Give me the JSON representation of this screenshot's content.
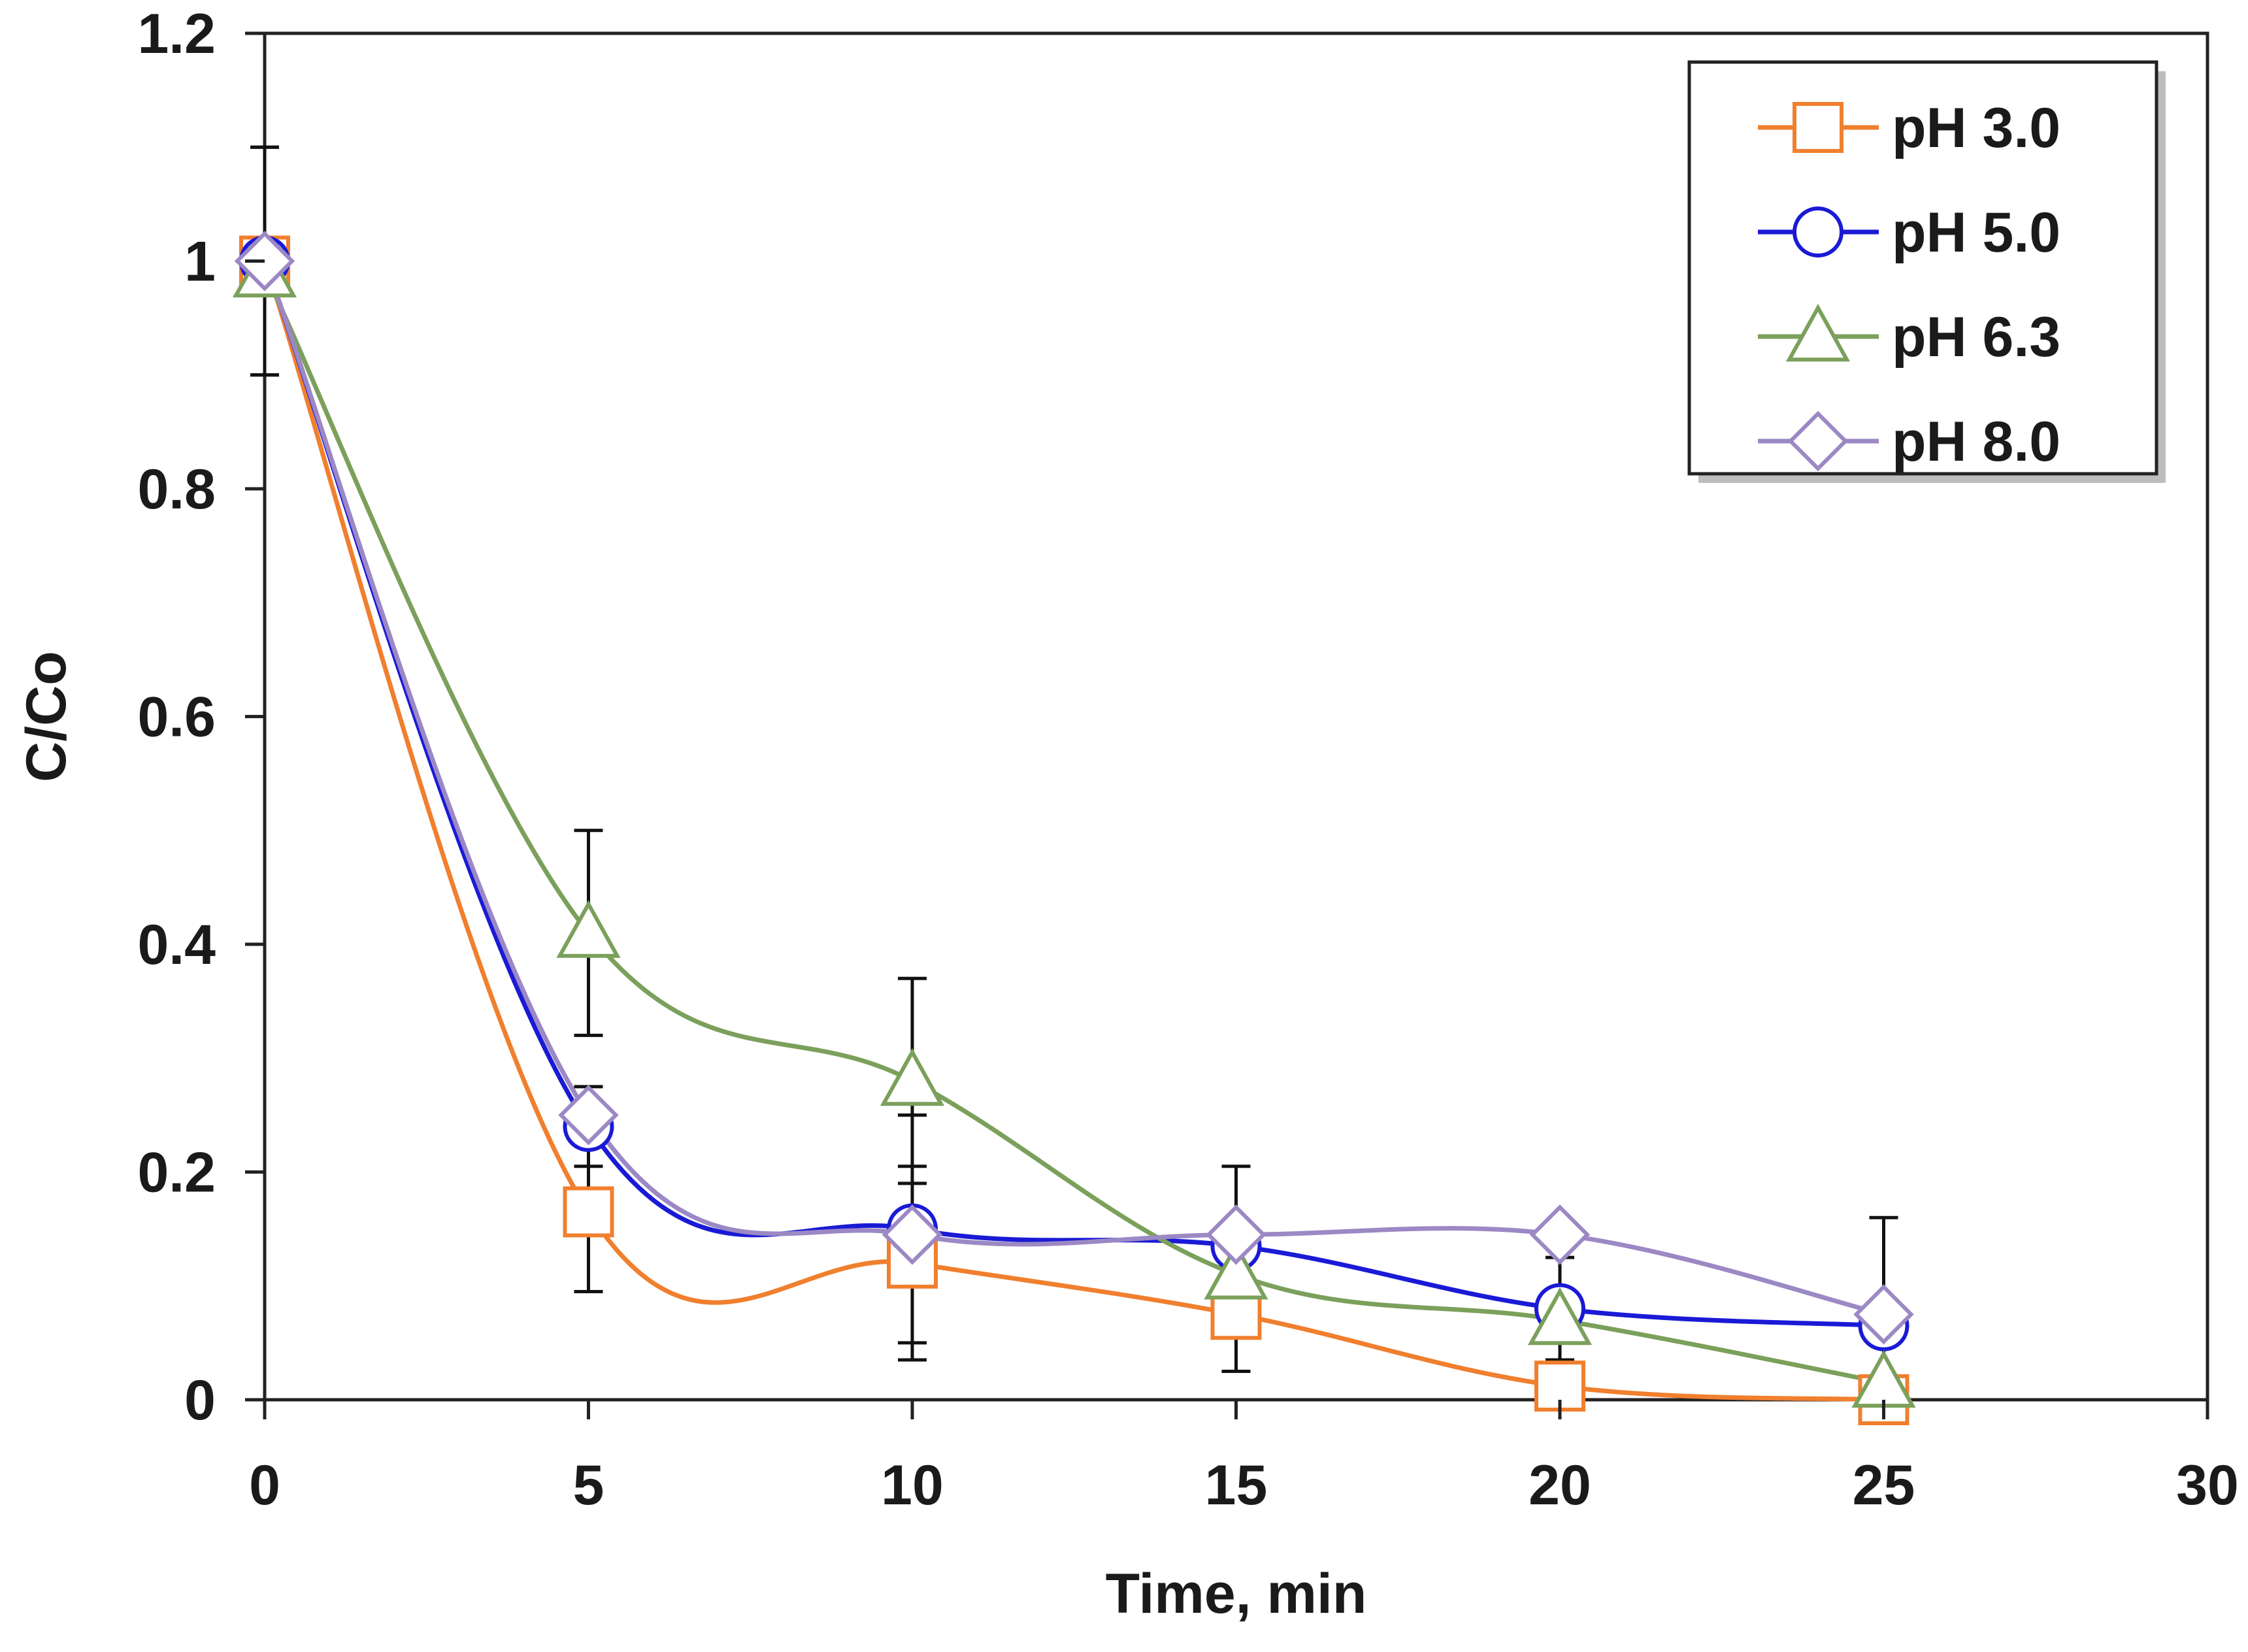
{
  "chart_data": {
    "type": "line",
    "xlabel": "Time, min",
    "ylabel": "C/Co",
    "xlim": [
      0,
      30
    ],
    "ylim": [
      0,
      1.2
    ],
    "xticks": [
      0,
      5,
      10,
      15,
      20,
      25,
      30
    ],
    "yticks": [
      0,
      0.2,
      0.4,
      0.6,
      0.8,
      1,
      1.2
    ],
    "xtick_labels": [
      "0",
      "5",
      "10",
      "15",
      "20",
      "25",
      "30"
    ],
    "ytick_labels": [
      "0",
      "0.2",
      "0.4",
      "0.6",
      "0.8",
      "1",
      "1.2"
    ],
    "grid": false,
    "legend_position": "top-right",
    "x": [
      0,
      5,
      10,
      15,
      20,
      25
    ],
    "series": [
      {
        "name": "pH 3.0",
        "color": "#f07f2e",
        "marker": "square",
        "values": [
          1.0,
          0.165,
          0.12,
          0.075,
          0.012,
          0.0
        ],
        "error": [
          0.1,
          0.07,
          0.085,
          0.05,
          0.0,
          0.0
        ]
      },
      {
        "name": "pH 5.0",
        "color": "#1a1ad6",
        "marker": "circle",
        "values": [
          1.0,
          0.24,
          0.15,
          0.135,
          0.08,
          0.065
        ],
        "error": [
          0.1,
          0.035,
          0.1,
          0.0,
          0.045,
          0.0
        ]
      },
      {
        "name": "pH 6.3",
        "color": "#7ba05b",
        "marker": "triangle",
        "values": [
          0.99,
          0.41,
          0.28,
          0.11,
          0.07,
          0.015
        ],
        "error": [
          0.0,
          0.09,
          0.09,
          0.0,
          0.0,
          0.0
        ]
      },
      {
        "name": "pH 8.0",
        "color": "#9b88c4",
        "marker": "diamond",
        "values": [
          1.0,
          0.25,
          0.145,
          0.145,
          0.145,
          0.075
        ],
        "error": [
          0.0,
          0.0,
          0.0,
          0.06,
          0.0,
          0.085
        ]
      }
    ]
  }
}
